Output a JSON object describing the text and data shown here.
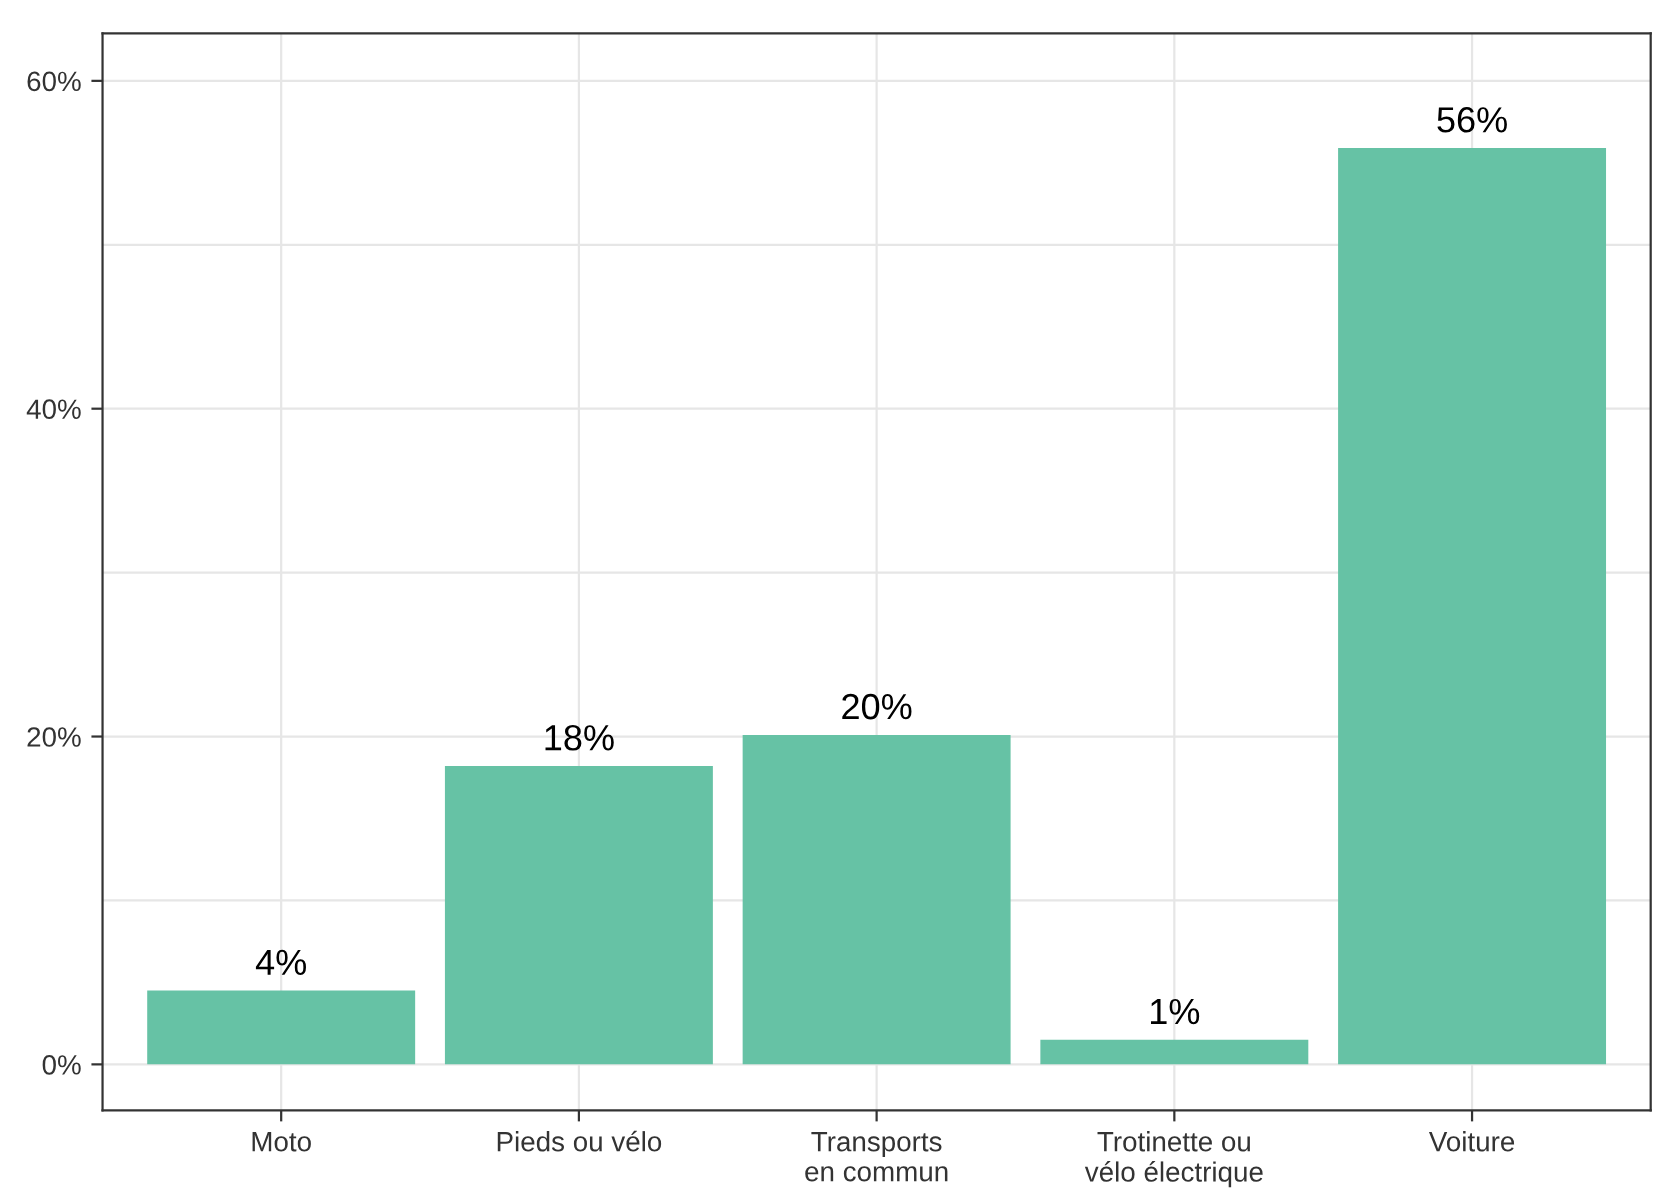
{
  "chart_data": {
    "type": "bar",
    "categories": [
      "Moto",
      "Pieds ou vélo",
      "Transports\nen commun",
      "Trotinette ou\nvélo électrique",
      "Voiture"
    ],
    "values": [
      4.5,
      18.2,
      20.1,
      1.5,
      55.9
    ],
    "value_labels": [
      "4%",
      "18%",
      "20%",
      "1%",
      "56%"
    ],
    "color": "#66c2a5",
    "ylim": [
      -2.8,
      62.9
    ],
    "yticks": [
      {
        "value": 0,
        "label": "0%"
      },
      {
        "value": 10,
        "label": null
      },
      {
        "value": 20,
        "label": "20%"
      },
      {
        "value": 30,
        "label": null
      },
      {
        "value": 40,
        "label": "40%"
      },
      {
        "value": 50,
        "label": null
      },
      {
        "value": 60,
        "label": "60%"
      }
    ],
    "grid": true
  }
}
